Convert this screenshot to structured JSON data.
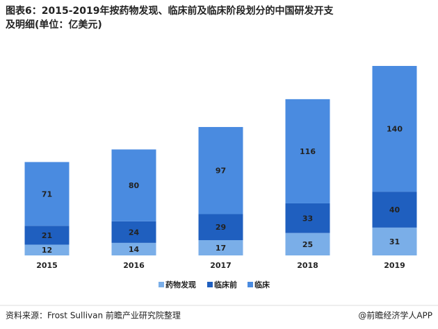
{
  "chart_data": {
    "type": "stacked_bar",
    "title": "图表6：2015-2019年按药物发现、临床前及临床阶段划分的中国研发开支及明细(单位：亿美元)",
    "categories": [
      "2015",
      "2016",
      "2017",
      "2018",
      "2019"
    ],
    "series": [
      {
        "name": "药物发现",
        "color": "#7aaee8",
        "values": [
          12,
          14,
          17,
          25,
          31
        ]
      },
      {
        "name": "临床前",
        "color": "#1f5fbf",
        "values": [
          21,
          24,
          29,
          33,
          40
        ]
      },
      {
        "name": "临床",
        "color": "#4a8be0",
        "values": [
          71,
          80,
          97,
          116,
          140
        ]
      }
    ],
    "legend": "bottom",
    "source": "资料来源：Frost Sullivan   前瞻产业研究院整理",
    "brand": "@前瞻经济学人APP"
  }
}
